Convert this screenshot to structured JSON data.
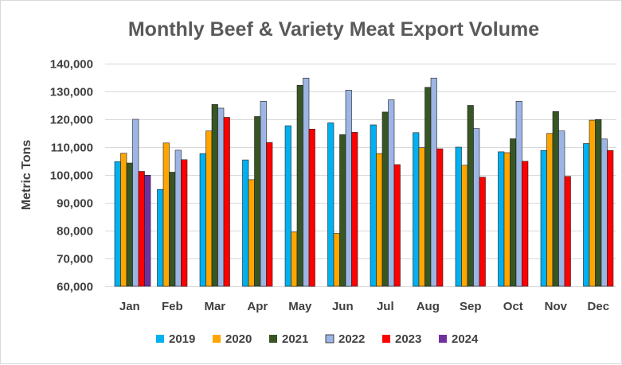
{
  "chart_data": {
    "type": "bar",
    "title": "Monthly Beef & Variety Meat Export Volume",
    "xlabel": "",
    "ylabel": "Metric Tons",
    "ylim": [
      60000,
      140000
    ],
    "yticks": [
      60000,
      70000,
      80000,
      90000,
      100000,
      110000,
      120000,
      130000,
      140000
    ],
    "ytick_labels": [
      "60,000",
      "70,000",
      "80,000",
      "90,000",
      "100,000",
      "110,000",
      "120,000",
      "130,000",
      "140,000"
    ],
    "grid": true,
    "legend_position": "bottom",
    "categories": [
      "Jan",
      "Feb",
      "Mar",
      "Apr",
      "May",
      "Jun",
      "Jul",
      "Aug",
      "Sep",
      "Oct",
      "Nov",
      "Dec"
    ],
    "series": [
      {
        "name": "2019",
        "color": "#00b0f0",
        "values": [
          104800,
          94800,
          107700,
          105400,
          117700,
          118700,
          118000,
          115200,
          110000,
          108300,
          108800,
          111300
        ]
      },
      {
        "name": "2020",
        "color": "#ffa500",
        "values": [
          107800,
          111500,
          115800,
          98300,
          79500,
          79000,
          107700,
          109800,
          103500,
          108000,
          114900,
          119700
        ]
      },
      {
        "name": "2021",
        "color": "#375623",
        "values": [
          104300,
          101000,
          125300,
          121000,
          132200,
          114500,
          122600,
          131500,
          125000,
          113000,
          122800,
          119900
        ]
      },
      {
        "name": "2022",
        "color": "#9db5e4",
        "values": [
          120000,
          108900,
          124000,
          126500,
          134800,
          130500,
          127000,
          134800,
          116700,
          126500,
          115800,
          112900
        ]
      },
      {
        "name": "2023",
        "color": "#ff0000",
        "values": [
          101300,
          105500,
          120700,
          111700,
          116500,
          115300,
          103700,
          109400,
          99200,
          104900,
          99500,
          108800
        ]
      },
      {
        "name": "2024",
        "color": "#7030a0",
        "values": [
          99900,
          null,
          null,
          null,
          null,
          null,
          null,
          null,
          null,
          null,
          null,
          null
        ]
      }
    ]
  }
}
